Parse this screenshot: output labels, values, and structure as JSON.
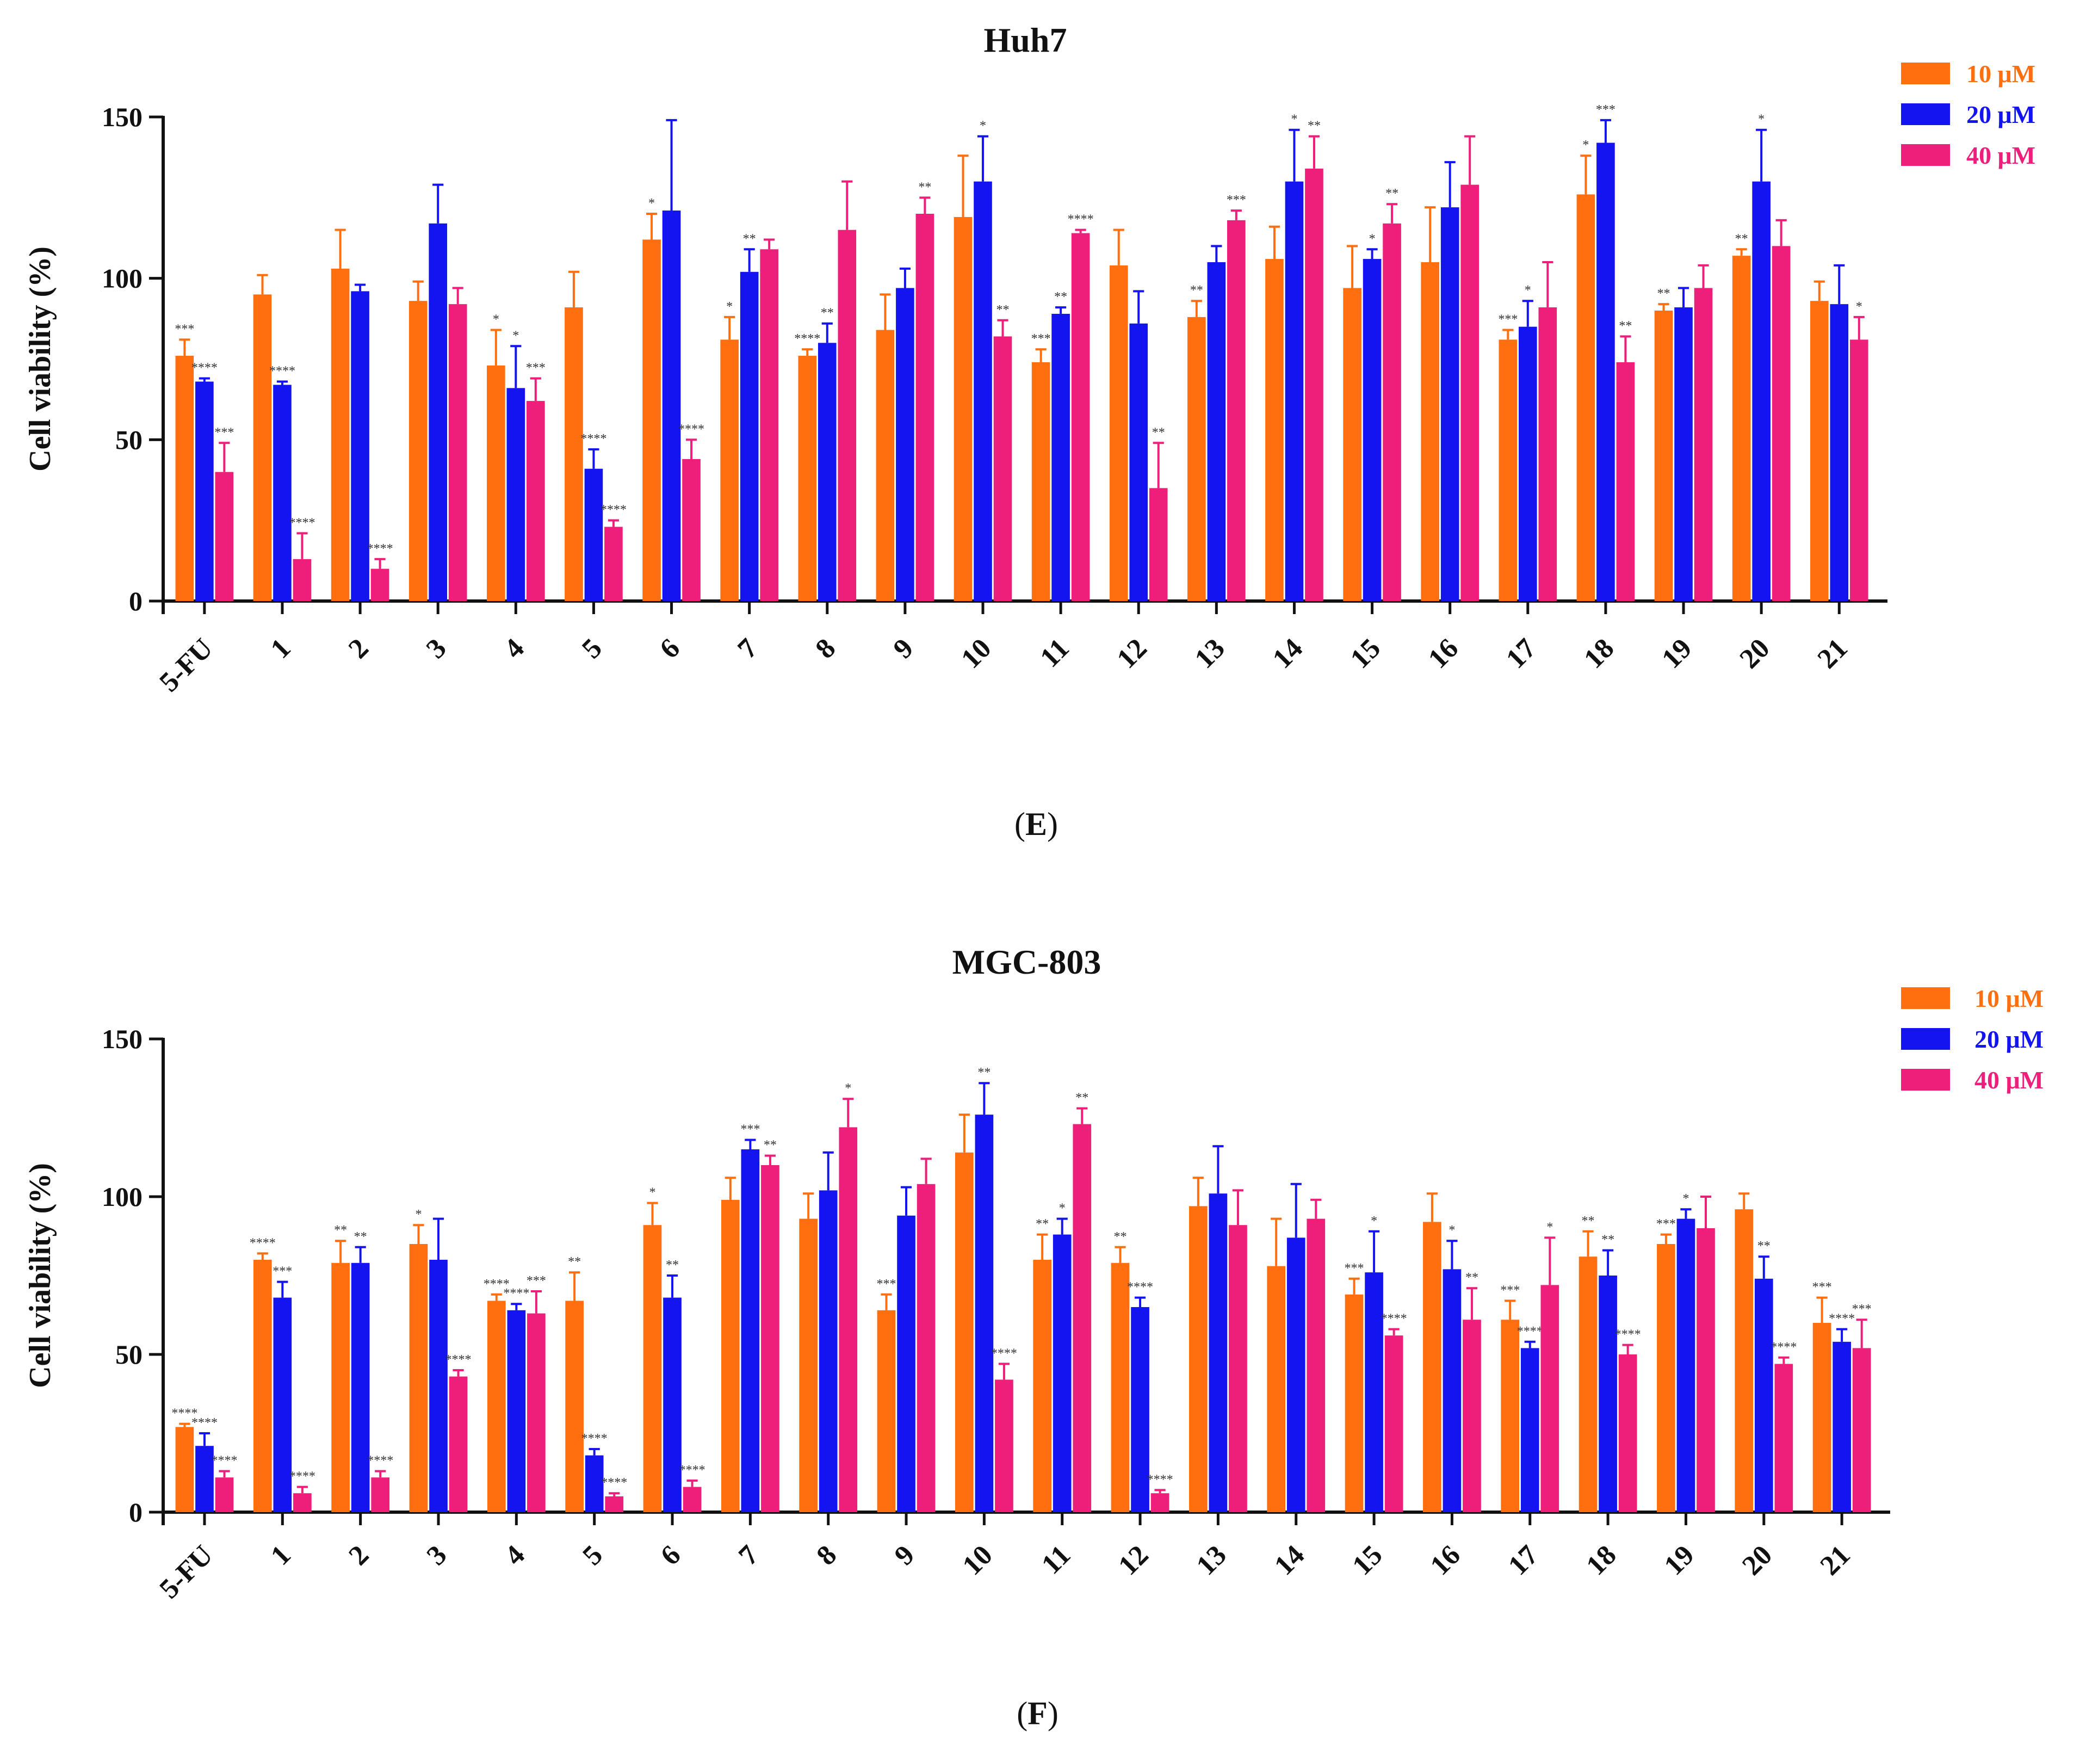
{
  "colors": {
    "c10": "#FF6F0F",
    "c20": "#1414F0",
    "c40": "#EE1F7A",
    "axis": "#111111"
  },
  "chart_data": [
    {
      "type": "bar",
      "title": "Huh7",
      "panel_label": "E",
      "ylabel": "Cell viability (%)",
      "xlabel": "",
      "ylim": [
        0,
        150
      ],
      "yticks": [
        0,
        50,
        100,
        150
      ],
      "legend_position": "top-right",
      "categories": [
        "5-FU",
        "1",
        "2",
        "3",
        "4",
        "5",
        "6",
        "7",
        "8",
        "9",
        "10",
        "11",
        "12",
        "13",
        "14",
        "15",
        "16",
        "17",
        "18",
        "19",
        "20",
        "21"
      ],
      "series": [
        {
          "name": "10 μM",
          "color": "#FF6F0F",
          "values": [
            76,
            95,
            103,
            93,
            73,
            91,
            112,
            81,
            76,
            84,
            119,
            74,
            104,
            88,
            106,
            97,
            105,
            81,
            126,
            90,
            107,
            93
          ],
          "errors": [
            5,
            6,
            12,
            6,
            11,
            11,
            8,
            7,
            2,
            11,
            19,
            4,
            11,
            5,
            10,
            13,
            17,
            3,
            12,
            2,
            2,
            6
          ],
          "significance": [
            "***",
            "",
            "",
            "",
            "*",
            "",
            "*",
            "*",
            "****",
            "",
            "",
            "***",
            "",
            "**",
            "",
            "",
            "",
            "***",
            "*",
            "**",
            "**",
            ""
          ]
        },
        {
          "name": "20 μM",
          "color": "#1414F0",
          "values": [
            68,
            67,
            96,
            117,
            66,
            41,
            121,
            102,
            80,
            97,
            130,
            89,
            86,
            105,
            130,
            106,
            122,
            85,
            142,
            91,
            130,
            92
          ],
          "errors": [
            1,
            1,
            2,
            12,
            13,
            6,
            28,
            7,
            6,
            6,
            14,
            2,
            10,
            5,
            16,
            3,
            14,
            8,
            7,
            6,
            16,
            12
          ],
          "significance": [
            "****",
            "****",
            "",
            "",
            "*",
            "****",
            "",
            "**",
            "**",
            "",
            "*",
            "**",
            "",
            "",
            "*",
            "*",
            "",
            "*",
            "***",
            "",
            "*",
            ""
          ]
        },
        {
          "name": "40 μM",
          "color": "#EE1F7A",
          "values": [
            40,
            13,
            10,
            92,
            62,
            23,
            44,
            109,
            115,
            120,
            82,
            114,
            35,
            118,
            134,
            117,
            129,
            91,
            74,
            97,
            110,
            81
          ],
          "errors": [
            9,
            8,
            3,
            5,
            7,
            2,
            6,
            3,
            15,
            5,
            5,
            1,
            14,
            3,
            10,
            6,
            15,
            14,
            8,
            7,
            8,
            7
          ],
          "significance": [
            "***",
            "****",
            "****",
            "",
            "***",
            "****",
            "****",
            "",
            "",
            "**",
            "**",
            "****",
            "**",
            "***",
            "**",
            "**",
            "",
            "",
            "**",
            "",
            "",
            "*"
          ]
        }
      ]
    },
    {
      "type": "bar",
      "title": "MGC-803",
      "panel_label": "F",
      "ylabel": "Cell viability (%)",
      "xlabel": "",
      "ylim": [
        0,
        150
      ],
      "yticks": [
        0,
        50,
        100,
        150
      ],
      "legend_position": "top-right",
      "categories": [
        "5-FU",
        "1",
        "2",
        "3",
        "4",
        "5",
        "6",
        "7",
        "8",
        "9",
        "10",
        "11",
        "12",
        "13",
        "14",
        "15",
        "16",
        "17",
        "18",
        "19",
        "20",
        "21"
      ],
      "series": [
        {
          "name": "10 μM",
          "color": "#FF6F0F",
          "values": [
            27,
            80,
            79,
            85,
            67,
            67,
            91,
            99,
            93,
            64,
            114,
            80,
            79,
            97,
            78,
            69,
            92,
            61,
            81,
            85,
            96,
            60
          ],
          "errors": [
            1,
            2,
            7,
            6,
            2,
            9,
            7,
            7,
            8,
            5,
            12,
            8,
            5,
            9,
            15,
            5,
            9,
            6,
            8,
            3,
            5,
            8
          ],
          "significance": [
            "****",
            "****",
            "**",
            "*",
            "****",
            "**",
            "*",
            "",
            "",
            "***",
            "",
            "**",
            "**",
            "",
            "",
            "***",
            "",
            "***",
            "**",
            "***",
            "",
            "***"
          ]
        },
        {
          "name": "20 μM",
          "color": "#1414F0",
          "values": [
            21,
            68,
            79,
            80,
            64,
            18,
            68,
            115,
            102,
            94,
            126,
            88,
            65,
            101,
            87,
            76,
            77,
            52,
            75,
            93,
            74,
            54
          ],
          "errors": [
            4,
            5,
            5,
            13,
            2,
            2,
            7,
            3,
            12,
            9,
            10,
            5,
            3,
            15,
            17,
            13,
            9,
            2,
            8,
            3,
            7,
            4
          ],
          "significance": [
            "****",
            "***",
            "**",
            "",
            "****",
            "****",
            "**",
            "***",
            "",
            "",
            "**",
            "*",
            "****",
            "",
            "",
            "*",
            "*",
            "****",
            "**",
            "*",
            "**",
            "****"
          ]
        },
        {
          "name": "40 μM",
          "color": "#EE1F7A",
          "values": [
            11,
            6,
            11,
            43,
            63,
            5,
            8,
            110,
            122,
            104,
            42,
            123,
            6,
            91,
            93,
            56,
            61,
            72,
            50,
            90,
            47,
            52
          ],
          "errors": [
            2,
            2,
            2,
            2,
            7,
            1,
            2,
            3,
            9,
            8,
            5,
            5,
            1,
            11,
            6,
            2,
            10,
            15,
            3,
            10,
            2,
            9
          ],
          "significance": [
            "****",
            "****",
            "****",
            "****",
            "***",
            "****",
            "****",
            "**",
            "*",
            "",
            "****",
            "**",
            "****",
            "",
            "",
            "****",
            "**",
            "*",
            "****",
            "",
            "****",
            "***"
          ]
        }
      ]
    }
  ]
}
